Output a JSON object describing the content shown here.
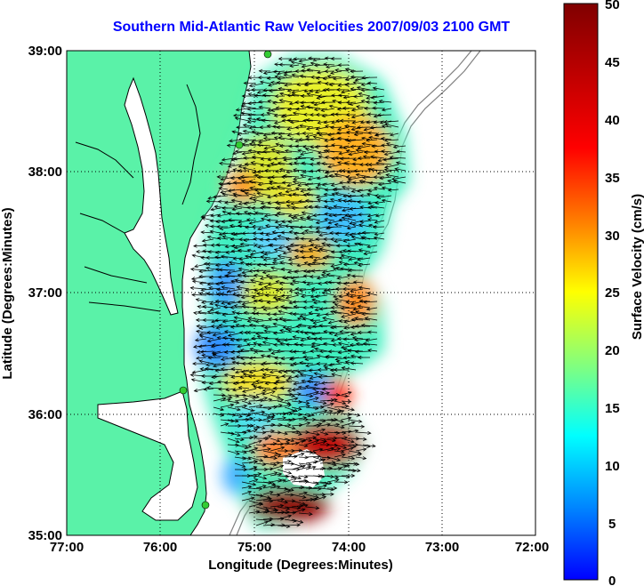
{
  "title": "Southern Mid-Atlantic Raw Velocities 2007/09/03 2100 GMT",
  "x_axis": {
    "label": "Longitude (Degrees:Minutes)",
    "ticks": [
      "77:00",
      "76:00",
      "75:00",
      "74:00",
      "73:00",
      "72:00"
    ]
  },
  "y_axis": {
    "label": "Latitude (Degrees:Minutes)",
    "ticks": [
      "39:00",
      "38:00",
      "37:00",
      "36:00",
      "35:00"
    ]
  },
  "colorbar": {
    "label": "Surface Velocity (cm/s)",
    "ticks": [
      "50",
      "45",
      "40",
      "35",
      "30",
      "25",
      "20",
      "15",
      "10",
      "5",
      "0"
    ],
    "range": [
      0,
      50
    ]
  },
  "colors": {
    "land": "#5af2a8",
    "coastline": "#000000",
    "isobath": "#808080",
    "grid": "#000000",
    "title": "#0000ff",
    "station": "#33cc33"
  },
  "grid": "dotted"
}
